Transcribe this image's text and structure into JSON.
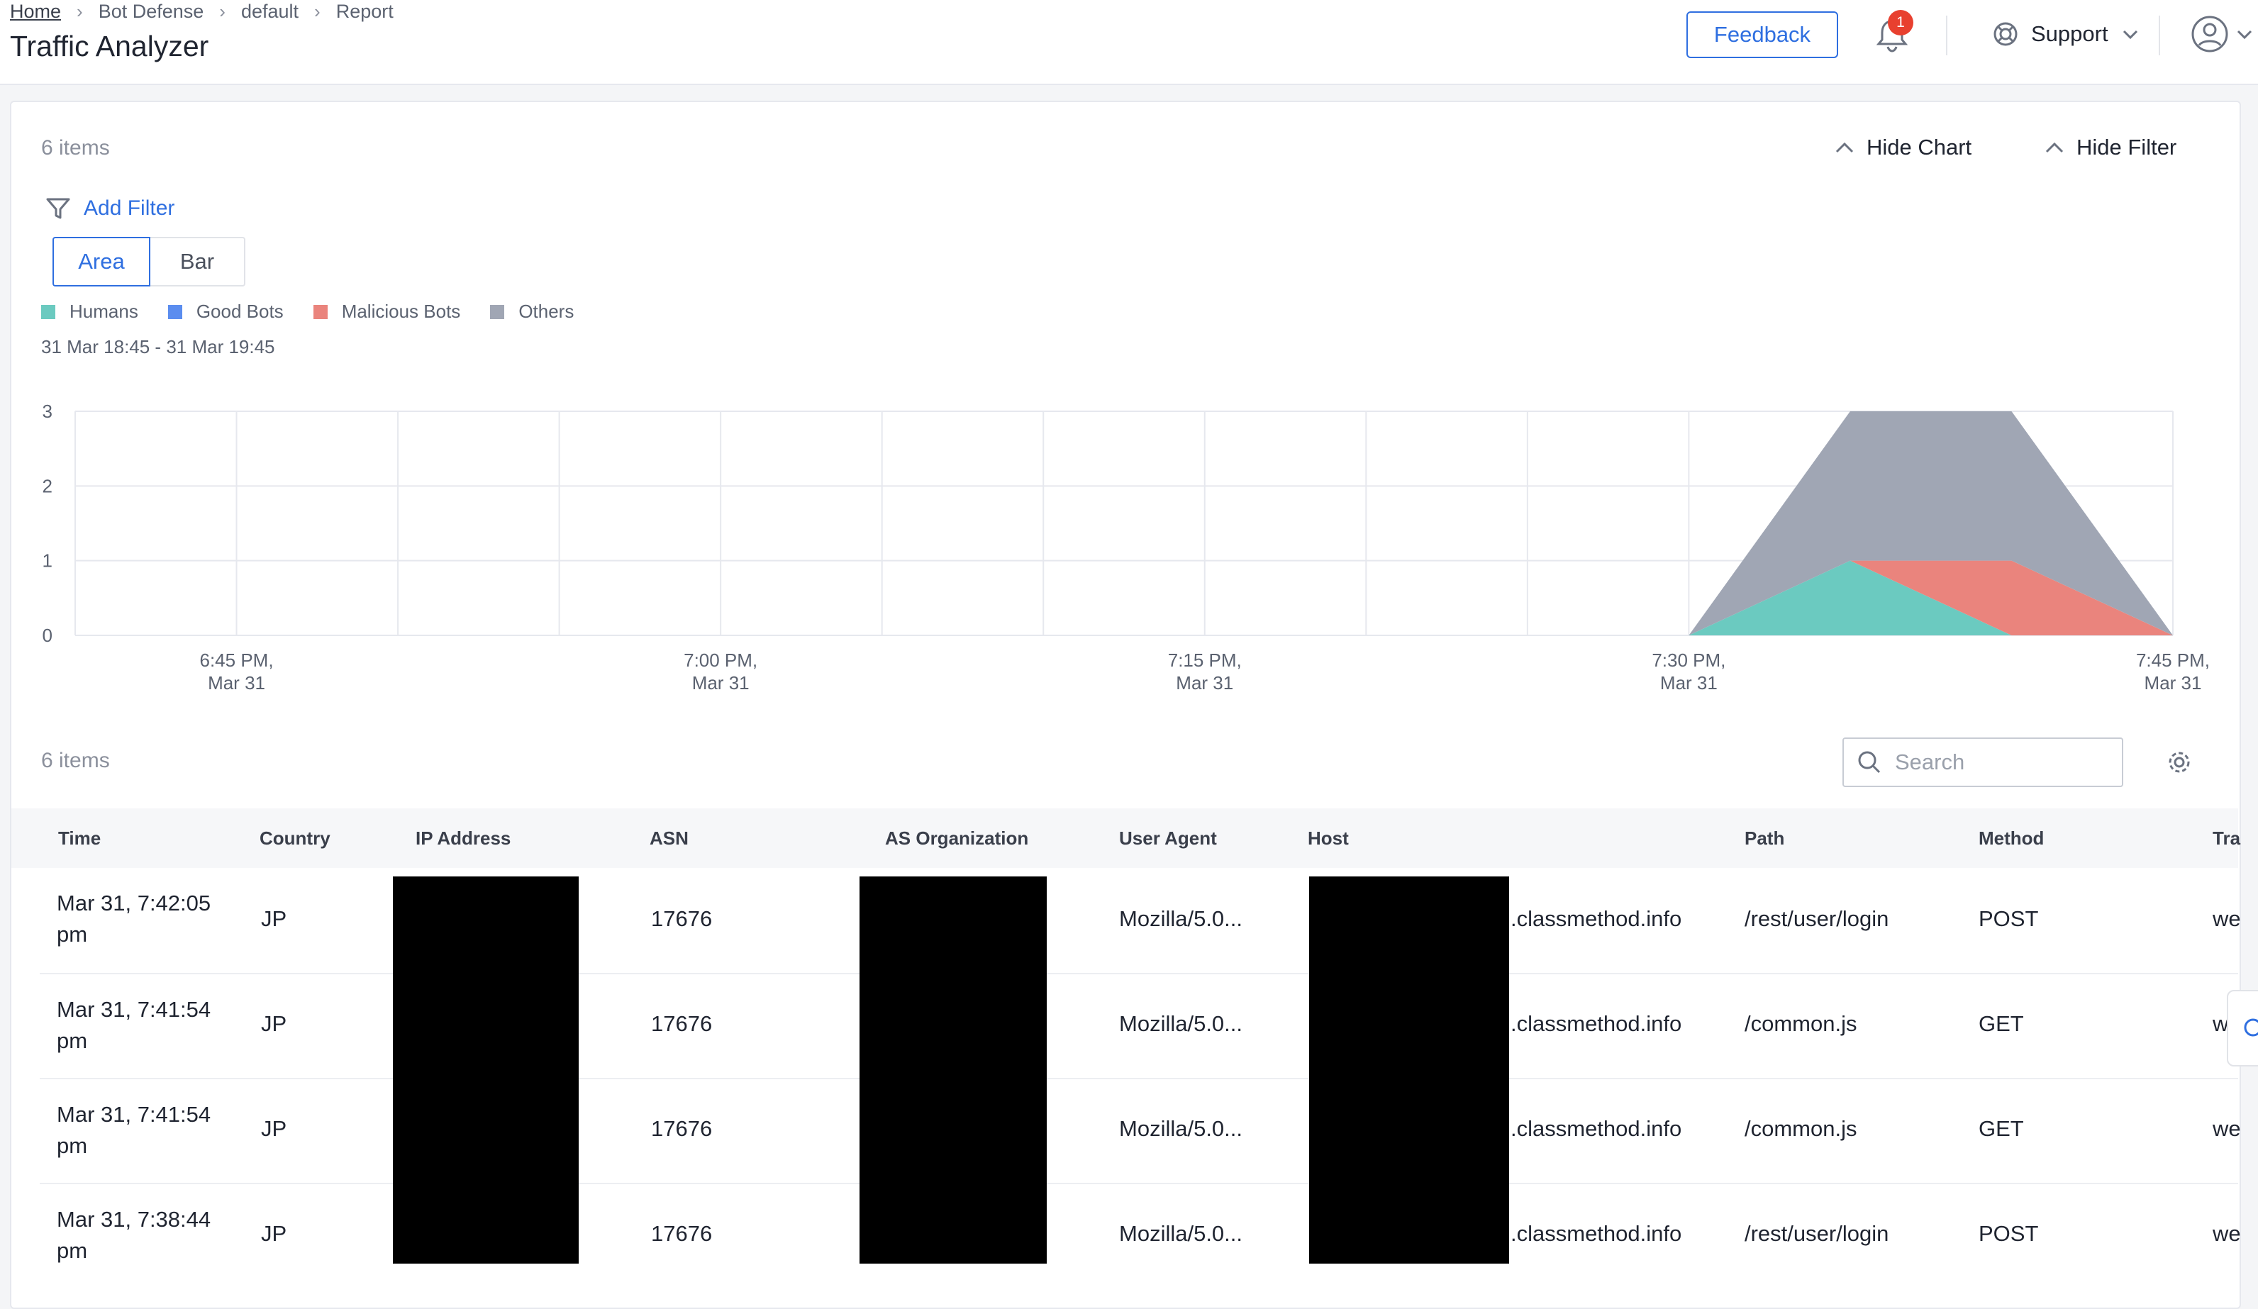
{
  "breadcrumb": [
    "Home",
    "Bot Defense",
    "default",
    "Report"
  ],
  "page_title": "Traffic Analyzer",
  "header": {
    "feedback_label": "Feedback",
    "notification_count": "1",
    "support_label": "Support"
  },
  "chart_section": {
    "items_count": "6 items",
    "hide_chart_label": "Hide Chart",
    "hide_filter_label": "Hide Filter",
    "add_filter_label": "Add Filter",
    "chart_types": [
      "Area",
      "Bar"
    ],
    "active_chart_type": "Area",
    "time_range": "31 Mar 18:45 - 31 Mar 19:45"
  },
  "chart_data": {
    "type": "area",
    "stacked": true,
    "x": [
      "18:40",
      "18:45",
      "18:50",
      "18:55",
      "19:00",
      "19:05",
      "19:10",
      "19:15",
      "19:20",
      "19:25",
      "19:30",
      "19:35",
      "19:40",
      "19:45"
    ],
    "x_tick_labels": [
      {
        "x": "18:45",
        "label": [
          "6:45 PM,",
          "Mar 31"
        ]
      },
      {
        "x": "19:00",
        "label": [
          "7:00 PM,",
          "Mar 31"
        ]
      },
      {
        "x": "19:15",
        "label": [
          "7:15 PM,",
          "Mar 31"
        ]
      },
      {
        "x": "19:30",
        "label": [
          "7:30 PM,",
          "Mar 31"
        ]
      },
      {
        "x": "19:45",
        "label": [
          "7:45 PM,",
          "Mar 31"
        ]
      }
    ],
    "y_ticks": [
      0,
      1,
      2,
      3
    ],
    "ylim": [
      0,
      3
    ],
    "grid": true,
    "legend_position": "top-left",
    "series": [
      {
        "name": "Humans",
        "color": "#6bcac0",
        "values": [
          0,
          0,
          0,
          0,
          0,
          0,
          0,
          0,
          0,
          0,
          0,
          1,
          0,
          0
        ]
      },
      {
        "name": "Good Bots",
        "color": "#5b8def",
        "values": [
          0,
          0,
          0,
          0,
          0,
          0,
          0,
          0,
          0,
          0,
          0,
          0,
          0,
          0
        ]
      },
      {
        "name": "Malicious Bots",
        "color": "#ea847d",
        "values": [
          0,
          0,
          0,
          0,
          0,
          0,
          0,
          0,
          0,
          0,
          0,
          0,
          1,
          0
        ]
      },
      {
        "name": "Others",
        "color": "#a0a6b4",
        "values": [
          0,
          0,
          0,
          0,
          0,
          0,
          0,
          0,
          0,
          0,
          0,
          2,
          2,
          0
        ]
      }
    ]
  },
  "table": {
    "items_count": "6 items",
    "search_placeholder": "Search",
    "columns": [
      "Time",
      "Country",
      "IP Address",
      "ASN",
      "AS Organization",
      "User Agent",
      "Host",
      "Path",
      "Method",
      "Tra"
    ],
    "rows": [
      {
        "time": "Mar 31, 7:42:05 pm",
        "country": "JP",
        "asn": "17676",
        "user_agent": "Mozilla/5.0...",
        "host": ".classmethod.info",
        "path": "/rest/user/login",
        "method": "POST",
        "trailing": "we"
      },
      {
        "time": "Mar 31, 7:41:54 pm",
        "country": "JP",
        "asn": "17676",
        "user_agent": "Mozilla/5.0...",
        "host": ".classmethod.info",
        "path": "/common.js",
        "method": "GET",
        "trailing": "w"
      },
      {
        "time": "Mar 31, 7:41:54 pm",
        "country": "JP",
        "asn": "17676",
        "user_agent": "Mozilla/5.0...",
        "host": ".classmethod.info",
        "path": "/common.js",
        "method": "GET",
        "trailing": "we"
      },
      {
        "time": "Mar 31, 7:38:44 pm",
        "country": "JP",
        "asn": "17676",
        "user_agent": "Mozilla/5.0...",
        "host": ".classmethod.info",
        "path": "/rest/user/login",
        "method": "POST",
        "trailing": "we"
      }
    ]
  }
}
